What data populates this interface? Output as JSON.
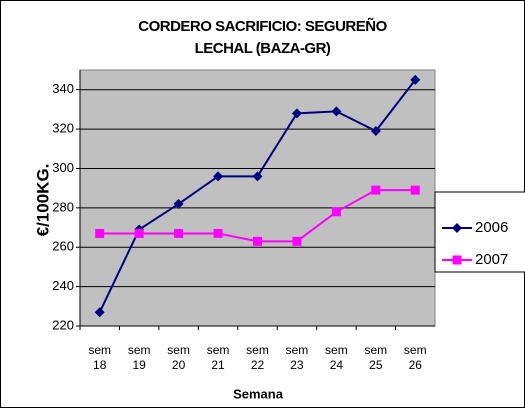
{
  "chart_data": {
    "type": "line",
    "title": [
      "CORDERO SACRIFICIO: SEGUREÑO",
      "LECHAL (BAZA-GR)"
    ],
    "x_label": "Semana",
    "y_label": "€/100KG.",
    "categories": [
      "sem 18",
      "sem 19",
      "sem 20",
      "sem 21",
      "sem 22",
      "sem 23",
      "sem 24",
      "sem 25",
      "sem 26"
    ],
    "series": [
      {
        "name": "2006",
        "color": "#000080",
        "marker": "diamond",
        "values": [
          227,
          269,
          282,
          296,
          296,
          328,
          329,
          319,
          345
        ]
      },
      {
        "name": "2007",
        "color": "#ff00ff",
        "marker": "square",
        "values": [
          267,
          267,
          267,
          267,
          263,
          263,
          278,
          289,
          289
        ]
      }
    ],
    "ylim": [
      220,
      350
    ],
    "yticks": [
      220,
      240,
      260,
      280,
      300,
      320,
      340
    ],
    "grid": true,
    "legend": "right"
  }
}
